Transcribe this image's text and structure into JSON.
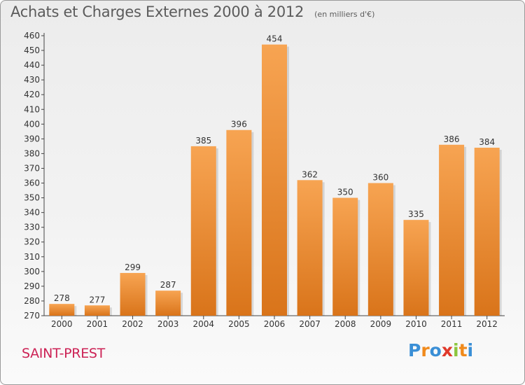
{
  "header": {
    "title": "Achats et Charges Externes 2000 à 2012",
    "subtitle": "(en milliers d'€)"
  },
  "footer": {
    "place": "SAINT-PREST",
    "logo_letters": [
      "P",
      "r",
      "o",
      "x",
      "i",
      "t",
      "i"
    ],
    "logo_colors": [
      "#3a8fd6",
      "#f08a1c",
      "#3a8fd6",
      "#e0392b",
      "#8cc63f",
      "#f08a1c",
      "#3a8fd6"
    ]
  },
  "chart_data": {
    "type": "bar",
    "categories": [
      "2000",
      "2001",
      "2002",
      "2003",
      "2004",
      "2005",
      "2006",
      "2007",
      "2008",
      "2009",
      "2010",
      "2011",
      "2012"
    ],
    "values": [
      278,
      277,
      299,
      287,
      385,
      396,
      454,
      362,
      350,
      360,
      335,
      386,
      384
    ],
    "ylim": [
      270,
      460
    ],
    "ytick_step": 10,
    "grid": false,
    "bar_colors": {
      "top": "#f7a452",
      "bottom": "#d9741a"
    }
  }
}
